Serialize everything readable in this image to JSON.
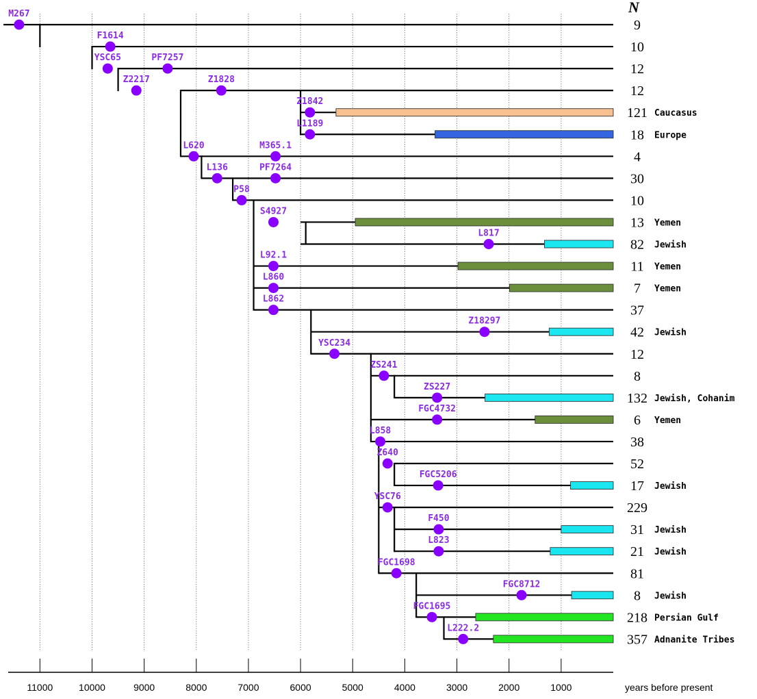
{
  "header": {
    "n_label": "N"
  },
  "axis": {
    "title": "years before present",
    "ticks": [
      11000,
      10000,
      9000,
      8000,
      7000,
      6000,
      5000,
      4000,
      3000,
      2000,
      1000
    ],
    "tick_labels": [
      "11000",
      "10000",
      "9000",
      "8000",
      "7000",
      "6000",
      "5000",
      "4000",
      "3000",
      "2000",
      "1000"
    ]
  },
  "colors": {
    "node": "#8a00ff",
    "node_label": "#8a2be2",
    "Caucasus": "#f7c08e",
    "Europe": "#3366e0",
    "Yemen": "#6b8e3a",
    "Jewish": "#1ae6f0",
    "Gulf": "#22e622"
  },
  "rows": [
    {
      "count": "9",
      "region": ""
    },
    {
      "count": "10",
      "region": ""
    },
    {
      "count": "12",
      "region": ""
    },
    {
      "count": "12",
      "region": ""
    },
    {
      "count": "121",
      "region": "Caucasus"
    },
    {
      "count": "18",
      "region": "Europe"
    },
    {
      "count": "4",
      "region": ""
    },
    {
      "count": "30",
      "region": ""
    },
    {
      "count": "10",
      "region": ""
    },
    {
      "count": "13",
      "region": "Yemen"
    },
    {
      "count": "82",
      "region": "Jewish"
    },
    {
      "count": "11",
      "region": "Yemen"
    },
    {
      "count": "7",
      "region": "Yemen"
    },
    {
      "count": "37",
      "region": ""
    },
    {
      "count": "42",
      "region": "Jewish"
    },
    {
      "count": "12",
      "region": ""
    },
    {
      "count": "8",
      "region": ""
    },
    {
      "count": "132",
      "region": "Jewish, Cohanim"
    },
    {
      "count": "6",
      "region": "Yemen"
    },
    {
      "count": "38",
      "region": ""
    },
    {
      "count": "52",
      "region": ""
    },
    {
      "count": "17",
      "region": "Jewish"
    },
    {
      "count": "229",
      "region": ""
    },
    {
      "count": "31",
      "region": "Jewish"
    },
    {
      "count": "21",
      "region": "Jewish"
    },
    {
      "count": "81",
      "region": ""
    },
    {
      "count": "8",
      "region": "Jewish"
    },
    {
      "count": "218",
      "region": "Persian Gulf"
    },
    {
      "count": "357",
      "region": "Adnanite Tribes"
    }
  ],
  "nodes": [
    {
      "label": "M267",
      "year": 11400,
      "row": 0
    },
    {
      "label": "F1614",
      "year": 9650,
      "row": 1
    },
    {
      "label": "YSC65",
      "year": 9700,
      "row": 2
    },
    {
      "label": "PF7257",
      "year": 8550,
      "row": 2
    },
    {
      "label": "Z2217",
      "year": 9150,
      "row": 3
    },
    {
      "label": "Z1828",
      "year": 7520,
      "row": 3
    },
    {
      "label": "Z1842",
      "year": 5820,
      "row": 4
    },
    {
      "label": "L1189",
      "year": 5820,
      "row": 5
    },
    {
      "label": "L620",
      "year": 8050,
      "row": 6
    },
    {
      "label": "M365.1",
      "year": 6480,
      "row": 6
    },
    {
      "label": "L136",
      "year": 7600,
      "row": 7
    },
    {
      "label": "PF7264",
      "year": 6480,
      "row": 7
    },
    {
      "label": "P58",
      "year": 7130,
      "row": 8
    },
    {
      "label": "S4927",
      "year": 6520,
      "row": 9
    },
    {
      "label": "L817",
      "year": 2390,
      "row": 10
    },
    {
      "label": "L92.1",
      "year": 6520,
      "row": 11
    },
    {
      "label": "L860",
      "year": 6520,
      "row": 12
    },
    {
      "label": "L862",
      "year": 6520,
      "row": 13
    },
    {
      "label": "Z18297",
      "year": 2470,
      "row": 14
    },
    {
      "label": "YSC234",
      "year": 5350,
      "row": 15
    },
    {
      "label": "ZS241",
      "year": 4400,
      "row": 16
    },
    {
      "label": "ZS227",
      "year": 3380,
      "row": 17
    },
    {
      "label": "FGC4732",
      "year": 3380,
      "row": 18
    },
    {
      "label": "L858",
      "year": 4470,
      "row": 19
    },
    {
      "label": "Z640",
      "year": 4330,
      "row": 20
    },
    {
      "label": "FGC5206",
      "year": 3360,
      "row": 21
    },
    {
      "label": "YSC76",
      "year": 4330,
      "row": 22
    },
    {
      "label": "F450",
      "year": 3350,
      "row": 23
    },
    {
      "label": "L823",
      "year": 3350,
      "row": 24
    },
    {
      "label": "FGC1698",
      "year": 4160,
      "row": 25
    },
    {
      "label": "FGC8712",
      "year": 1760,
      "row": 26
    },
    {
      "label": "FGC1695",
      "year": 3480,
      "row": 27
    },
    {
      "label": "L222.2",
      "year": 2880,
      "row": 28
    }
  ],
  "bars": [
    {
      "row": 4,
      "start": 5320,
      "end": 0,
      "color_key": "Caucasus"
    },
    {
      "row": 5,
      "start": 3420,
      "end": 0,
      "color_key": "Europe"
    },
    {
      "row": 9,
      "start": 4950,
      "end": 0,
      "color_key": "Yemen"
    },
    {
      "row": 10,
      "start": 1320,
      "end": 0,
      "color_key": "Jewish"
    },
    {
      "row": 11,
      "start": 2980,
      "end": 0,
      "color_key": "Yemen"
    },
    {
      "row": 12,
      "start": 1990,
      "end": 0,
      "color_key": "Yemen"
    },
    {
      "row": 14,
      "start": 1230,
      "end": 0,
      "color_key": "Jewish"
    },
    {
      "row": 17,
      "start": 2460,
      "end": 0,
      "color_key": "Jewish"
    },
    {
      "row": 18,
      "start": 1500,
      "end": 0,
      "color_key": "Yemen"
    },
    {
      "row": 21,
      "start": 820,
      "end": 0,
      "color_key": "Jewish"
    },
    {
      "row": 23,
      "start": 1000,
      "end": 0,
      "color_key": "Jewish"
    },
    {
      "row": 24,
      "start": 1210,
      "end": 0,
      "color_key": "Jewish"
    },
    {
      "row": 26,
      "start": 800,
      "end": 0,
      "color_key": "Jewish"
    },
    {
      "row": 27,
      "start": 2640,
      "end": 0,
      "color_key": "Gulf"
    },
    {
      "row": 28,
      "start": 2300,
      "end": 0,
      "color_key": "Gulf"
    }
  ],
  "tree": {
    "root_start_year": 11700,
    "row_start_year": [
      11000,
      10000,
      9500,
      8300,
      6000,
      6000,
      8300,
      7900,
      7300,
      6000,
      6000,
      6900,
      6900,
      6900,
      5800,
      5800,
      4650,
      4200,
      4650,
      4650,
      4200,
      4200,
      4500,
      4200,
      4200,
      4500,
      3780,
      3780,
      3250
    ],
    "verticals": [
      {
        "year": 11000,
        "from_row": 0,
        "to_row": 1
      },
      {
        "year": 10000,
        "from_row": 1,
        "to_row": 2
      },
      {
        "year": 9500,
        "from_row": 2,
        "to_row": 3
      },
      {
        "year": 8300,
        "from_row": 3,
        "to_row": 6
      },
      {
        "year": 6000,
        "from_row": 3,
        "to_row": 5
      },
      {
        "year": 7900,
        "from_row": 6,
        "to_row": 7
      },
      {
        "year": 7300,
        "from_row": 7,
        "to_row": 8
      },
      {
        "year": 6900,
        "from_row": 8,
        "to_row": 13
      },
      {
        "year": 5900,
        "from_row": 9,
        "to_row": 10
      },
      {
        "year": 5800,
        "from_row": 13,
        "to_row": 15
      },
      {
        "year": 4650,
        "from_row": 15,
        "to_row": 19
      },
      {
        "year": 4200,
        "from_row": 16,
        "to_row": 17
      },
      {
        "year": 4500,
        "from_row": 19,
        "to_row": 25
      },
      {
        "year": 4200,
        "from_row": 20,
        "to_row": 21
      },
      {
        "year": 4200,
        "from_row": 22,
        "to_row": 24
      },
      {
        "year": 3780,
        "from_row": 25,
        "to_row": 27
      },
      {
        "year": 3250,
        "from_row": 27,
        "to_row": 28
      }
    ]
  }
}
